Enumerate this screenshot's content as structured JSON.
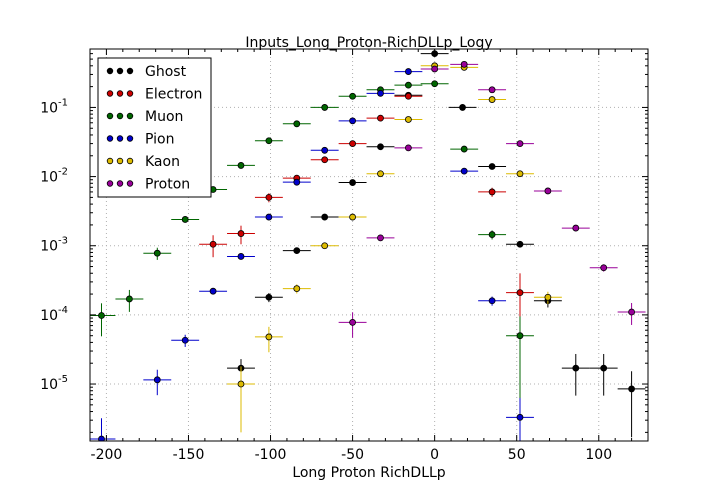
{
  "chart_data": {
    "type": "scatter",
    "title": "Inputs_Long_Proton-RichDLLp_Logy",
    "xlabel": "Long Proton RichDLLp",
    "ylabel": "",
    "xlim": [
      -210,
      130
    ],
    "ylim": [
      1.5e-06,
      0.7
    ],
    "log_y": true,
    "grid": true,
    "legend_position": "top-left",
    "x_ticks": [
      "-200",
      "-150",
      "-100",
      "-50",
      "0",
      "50",
      "100"
    ],
    "x_tick_values": [
      -200,
      -150,
      -100,
      -50,
      0,
      50,
      100
    ],
    "y_ticks": [
      {
        "value": 1e-05,
        "base": "10",
        "exp": "-5"
      },
      {
        "value": 0.0001,
        "base": "10",
        "exp": "-4"
      },
      {
        "value": 0.001,
        "base": "10",
        "exp": "-3"
      },
      {
        "value": 0.01,
        "base": "10",
        "exp": "-2"
      },
      {
        "value": 0.1,
        "base": "10",
        "exp": "-1"
      }
    ],
    "x_half_width": 8.5,
    "series": [
      {
        "name": "Ghost",
        "color": "#000000",
        "points": [
          [
            -118,
            1.7e-05,
            0.35
          ],
          [
            -101,
            0.00018,
            0.15
          ],
          [
            -84,
            0.00085,
            0.1
          ],
          [
            -67,
            0.0026,
            0.05
          ],
          [
            -50,
            0.0082,
            0.05
          ],
          [
            -33,
            0.027,
            0.04
          ],
          [
            -16,
            0.15,
            0.03
          ],
          [
            0,
            0.6,
            0.03
          ],
          [
            17,
            0.1,
            0.03
          ],
          [
            35,
            0.014,
            0.05
          ],
          [
            52,
            0.00105,
            0.08
          ],
          [
            69,
            0.00016,
            0.2
          ],
          [
            86,
            1.7e-05,
            0.6
          ],
          [
            103,
            1.7e-05,
            0.6
          ],
          [
            120,
            8.5e-06,
            0.8
          ]
        ]
      },
      {
        "name": "Electron",
        "color": "#cc0000",
        "points": [
          [
            -135,
            0.00105,
            0.35
          ],
          [
            -118,
            0.0015,
            0.3
          ],
          [
            -101,
            0.005,
            0.15
          ],
          [
            -84,
            0.0095,
            0.1
          ],
          [
            -67,
            0.0175,
            0.06
          ],
          [
            -50,
            0.03,
            0.04
          ],
          [
            -33,
            0.07,
            0.03
          ],
          [
            -16,
            0.145,
            0.03
          ],
          [
            35,
            0.006,
            0.15
          ],
          [
            52,
            0.00021,
            0.9
          ]
        ]
      },
      {
        "name": "Muon",
        "color": "#006600",
        "points": [
          [
            -203,
            9.8e-05,
            0.5
          ],
          [
            -186,
            0.00017,
            0.35
          ],
          [
            -169,
            0.00078,
            0.2
          ],
          [
            -152,
            0.0024,
            0.08
          ],
          [
            -135,
            0.0065,
            0.05
          ],
          [
            -118,
            0.0145,
            0.04
          ],
          [
            -101,
            0.033,
            0.03
          ],
          [
            -84,
            0.058,
            0.03
          ],
          [
            -67,
            0.1,
            0.03
          ],
          [
            -50,
            0.145,
            0.03
          ],
          [
            -33,
            0.18,
            0.03
          ],
          [
            -16,
            0.21,
            0.03
          ],
          [
            0,
            0.22,
            0.03
          ],
          [
            18,
            0.025,
            0.05
          ],
          [
            35,
            0.00145,
            0.15
          ],
          [
            52,
            5e-05,
            0.9
          ]
        ]
      },
      {
        "name": "Pion",
        "color": "#0000cc",
        "points": [
          [
            -203,
            1.6e-06,
            1.0
          ],
          [
            -169,
            1.15e-05,
            0.4
          ],
          [
            -152,
            4.3e-05,
            0.2
          ],
          [
            -135,
            0.00022,
            0.1
          ],
          [
            -118,
            0.0007,
            0.07
          ],
          [
            -101,
            0.0026,
            0.05
          ],
          [
            -84,
            0.0083,
            0.04
          ],
          [
            -67,
            0.024,
            0.03
          ],
          [
            -50,
            0.064,
            0.03
          ],
          [
            -33,
            0.16,
            0.03
          ],
          [
            -16,
            0.33,
            0.03
          ],
          [
            18,
            0.012,
            0.05
          ],
          [
            35,
            0.00016,
            0.15
          ],
          [
            52,
            3.3e-06,
            0.9
          ]
        ]
      },
      {
        "name": "Kaon",
        "color": "#ddbb00",
        "points": [
          [
            -118,
            1e-05,
            0.8
          ],
          [
            -101,
            4.8e-05,
            0.4
          ],
          [
            -84,
            0.00024,
            0.15
          ],
          [
            -67,
            0.001,
            0.08
          ],
          [
            -50,
            0.0026,
            0.06
          ],
          [
            -33,
            0.011,
            0.05
          ],
          [
            -16,
            0.067,
            0.03
          ],
          [
            0,
            0.4,
            0.03
          ],
          [
            18,
            0.38,
            0.03
          ],
          [
            35,
            0.13,
            0.03
          ],
          [
            52,
            0.011,
            0.05
          ],
          [
            69,
            0.00018,
            0.2
          ]
        ]
      },
      {
        "name": "Proton",
        "color": "#990099",
        "points": [
          [
            -50,
            7.8e-05,
            0.4
          ],
          [
            -33,
            0.0013,
            0.1
          ],
          [
            -16,
            0.026,
            0.04
          ],
          [
            0,
            0.36,
            0.03
          ],
          [
            18,
            0.42,
            0.03
          ],
          [
            35,
            0.18,
            0.03
          ],
          [
            52,
            0.03,
            0.04
          ],
          [
            69,
            0.0062,
            0.05
          ],
          [
            86,
            0.0018,
            0.07
          ],
          [
            103,
            0.00048,
            0.12
          ],
          [
            120,
            0.00011,
            0.35
          ]
        ]
      }
    ]
  }
}
